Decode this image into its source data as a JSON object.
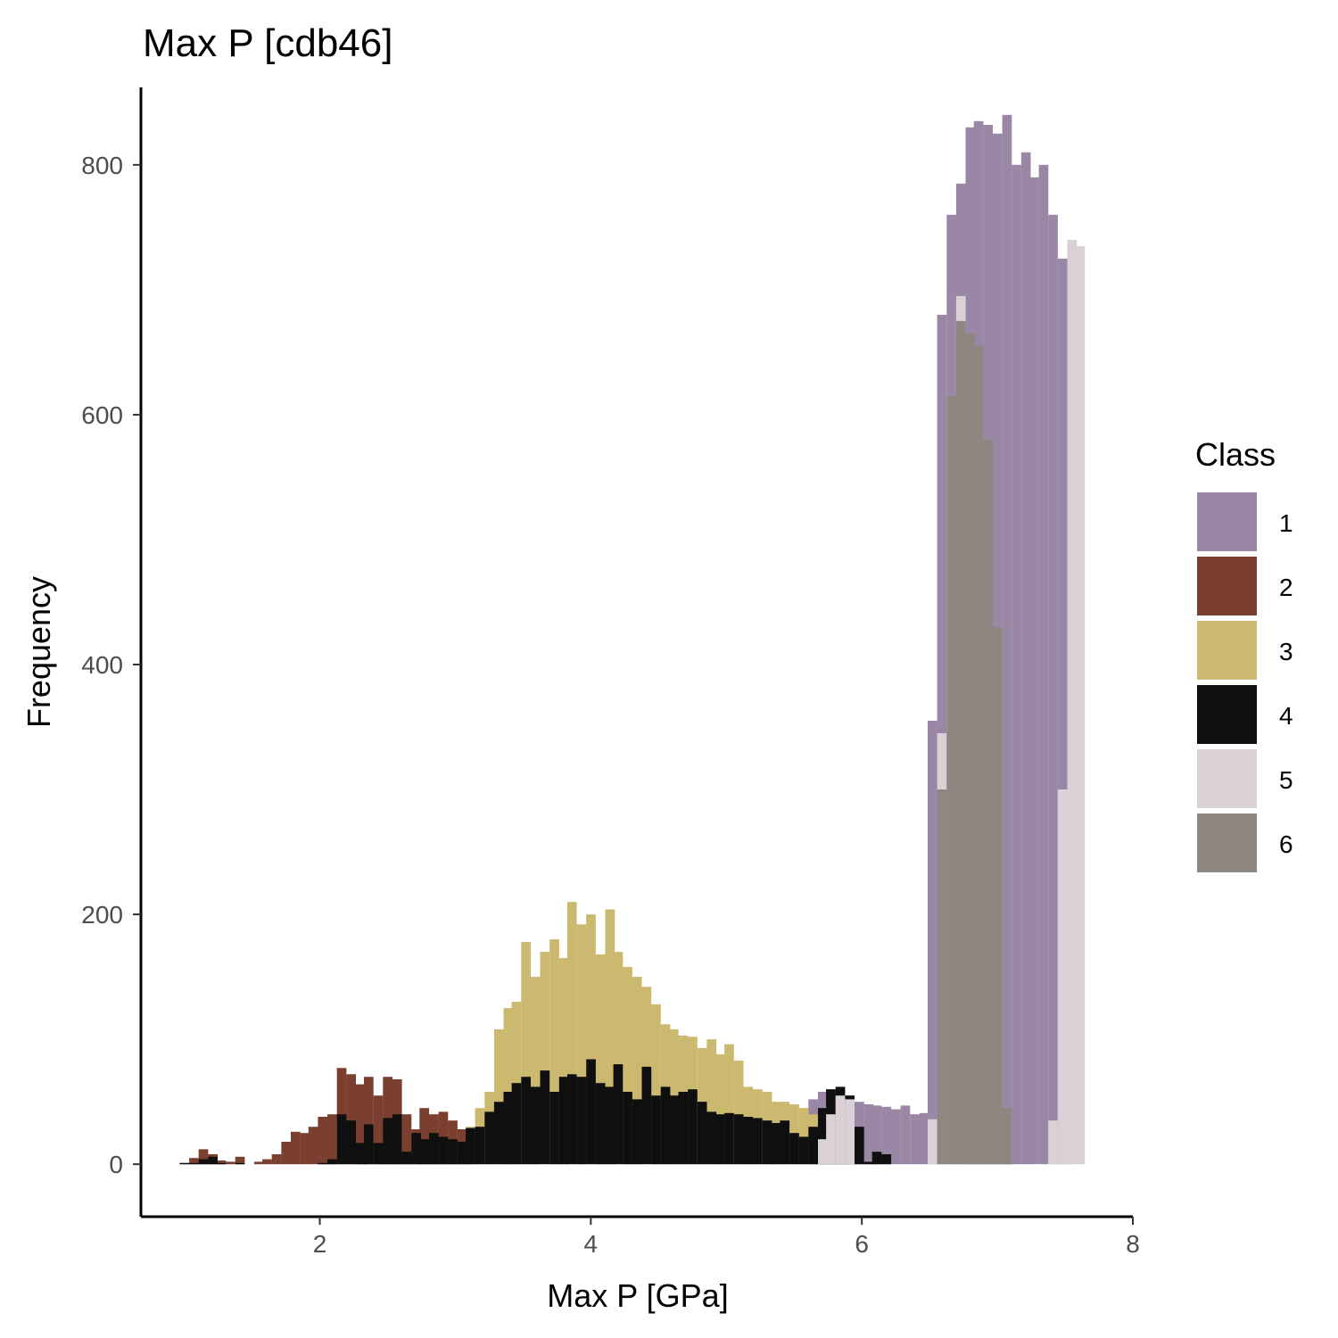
{
  "chart_data": {
    "type": "bar",
    "title": "Max P [cdb46]",
    "xlabel": "Max P [GPa]",
    "ylabel": "Frequency",
    "xlim": [
      0.68,
      8.0
    ],
    "ylim": [
      -42,
      862
    ],
    "xticks": [
      2,
      4,
      6,
      8
    ],
    "yticks": [
      0,
      200,
      400,
      600,
      800
    ],
    "grid": false,
    "bin_width": 0.068,
    "legend": {
      "title": "Class",
      "position": "right"
    },
    "series": [
      {
        "name": "1",
        "color": "#9a87a5",
        "x": [
          5.64,
          5.71,
          5.77,
          5.84,
          5.91,
          5.98,
          6.05,
          6.11,
          6.18,
          6.25,
          6.32,
          6.39,
          6.46,
          6.52,
          6.59,
          6.66,
          6.73,
          6.8,
          6.86,
          6.93,
          7.0,
          7.07,
          7.14,
          7.21,
          7.27,
          7.34,
          7.41,
          7.48
        ],
        "values": [
          52,
          58,
          60,
          57,
          55,
          50,
          48,
          47,
          46,
          44,
          47,
          40,
          41,
          355,
          680,
          760,
          785,
          830,
          835,
          832,
          825,
          840,
          800,
          810,
          790,
          800,
          760,
          725
        ]
      },
      {
        "name": "2",
        "color": "#7a3f2f",
        "x": [
          1.0,
          1.07,
          1.14,
          1.21,
          1.27,
          1.34,
          1.41,
          1.48,
          1.55,
          1.61,
          1.68,
          1.75,
          1.82,
          1.89,
          1.95,
          2.02,
          2.09,
          2.16,
          2.23,
          2.3,
          2.36,
          2.43,
          2.5,
          2.57,
          2.64,
          2.71,
          2.77,
          2.84,
          2.91,
          2.98,
          3.05,
          3.11
        ],
        "values": [
          1,
          5,
          12,
          8,
          3,
          2,
          6,
          0,
          2,
          4,
          8,
          18,
          26,
          25,
          30,
          38,
          40,
          77,
          72,
          64,
          70,
          55,
          70,
          68,
          40,
          28,
          45,
          40,
          42,
          35,
          28,
          25
        ]
      },
      {
        "name": "3",
        "color": "#cbb970",
        "x": [
          2.98,
          3.05,
          3.11,
          3.18,
          3.25,
          3.32,
          3.39,
          3.45,
          3.52,
          3.59,
          3.66,
          3.73,
          3.8,
          3.86,
          3.93,
          4.0,
          4.07,
          4.14,
          4.2,
          4.27,
          4.34,
          4.41,
          4.48,
          4.55,
          4.61,
          4.68,
          4.75,
          4.82,
          4.89,
          4.95,
          5.02,
          5.09,
          5.16,
          5.23,
          5.3,
          5.36,
          5.43,
          5.5,
          5.57,
          5.64,
          5.71
        ],
        "values": [
          5,
          15,
          30,
          45,
          58,
          108,
          125,
          130,
          178,
          150,
          170,
          180,
          165,
          210,
          192,
          200,
          168,
          204,
          170,
          158,
          150,
          142,
          128,
          112,
          108,
          103,
          102,
          93,
          100,
          88,
          96,
          83,
          62,
          60,
          58,
          50,
          50,
          48,
          45,
          40,
          35
        ]
      },
      {
        "name": "4",
        "color": "#100f0f",
        "x": [
          1.0,
          1.07,
          1.14,
          1.21,
          1.27,
          1.34,
          1.41,
          1.48,
          1.55,
          1.61,
          1.68,
          1.75,
          1.82,
          1.89,
          1.95,
          2.02,
          2.09,
          2.16,
          2.23,
          2.3,
          2.36,
          2.43,
          2.5,
          2.57,
          2.64,
          2.71,
          2.77,
          2.84,
          2.91,
          2.98,
          3.05,
          3.11,
          3.18,
          3.25,
          3.32,
          3.39,
          3.45,
          3.52,
          3.59,
          3.66,
          3.73,
          3.8,
          3.86,
          3.93,
          4.0,
          4.07,
          4.14,
          4.2,
          4.27,
          4.34,
          4.41,
          4.48,
          4.55,
          4.61,
          4.68,
          4.75,
          4.82,
          4.89,
          4.95,
          5.02,
          5.09,
          5.16,
          5.23,
          5.3,
          5.36,
          5.43,
          5.5,
          5.57,
          5.64,
          5.71,
          5.77,
          5.84,
          5.91,
          5.98,
          6.05,
          6.11,
          6.18
        ],
        "values": [
          1,
          1,
          4,
          6,
          1,
          0,
          1,
          0,
          0,
          0,
          0,
          0,
          0,
          0,
          0,
          1,
          4,
          40,
          35,
          17,
          32,
          17,
          37,
          40,
          10,
          25,
          20,
          25,
          22,
          20,
          18,
          29,
          30,
          42,
          50,
          58,
          65,
          70,
          62,
          75,
          58,
          70,
          72,
          70,
          84,
          65,
          62,
          80,
          58,
          52,
          78,
          55,
          62,
          55,
          58,
          60,
          50,
          42,
          40,
          41,
          40,
          38,
          37,
          35,
          33,
          35,
          25,
          22,
          30,
          45,
          60,
          62,
          55,
          30,
          2,
          10,
          8
        ]
      },
      {
        "name": "5",
        "color": "#d9d1d5",
        "x": [
          5.71,
          5.77,
          5.84,
          5.91,
          6.52,
          6.59,
          6.66,
          6.73,
          6.8,
          7.41,
          7.48,
          7.55,
          7.61
        ],
        "values": [
          20,
          40,
          55,
          52,
          36,
          345,
          615,
          695,
          0,
          35,
          300,
          740,
          735
        ]
      },
      {
        "name": "6",
        "color": "#8e8680",
        "x": [
          6.59,
          6.66,
          6.73,
          6.8,
          6.86,
          6.93,
          7.0,
          7.07
        ],
        "values": [
          300,
          615,
          675,
          665,
          655,
          580,
          430,
          45
        ]
      }
    ]
  }
}
